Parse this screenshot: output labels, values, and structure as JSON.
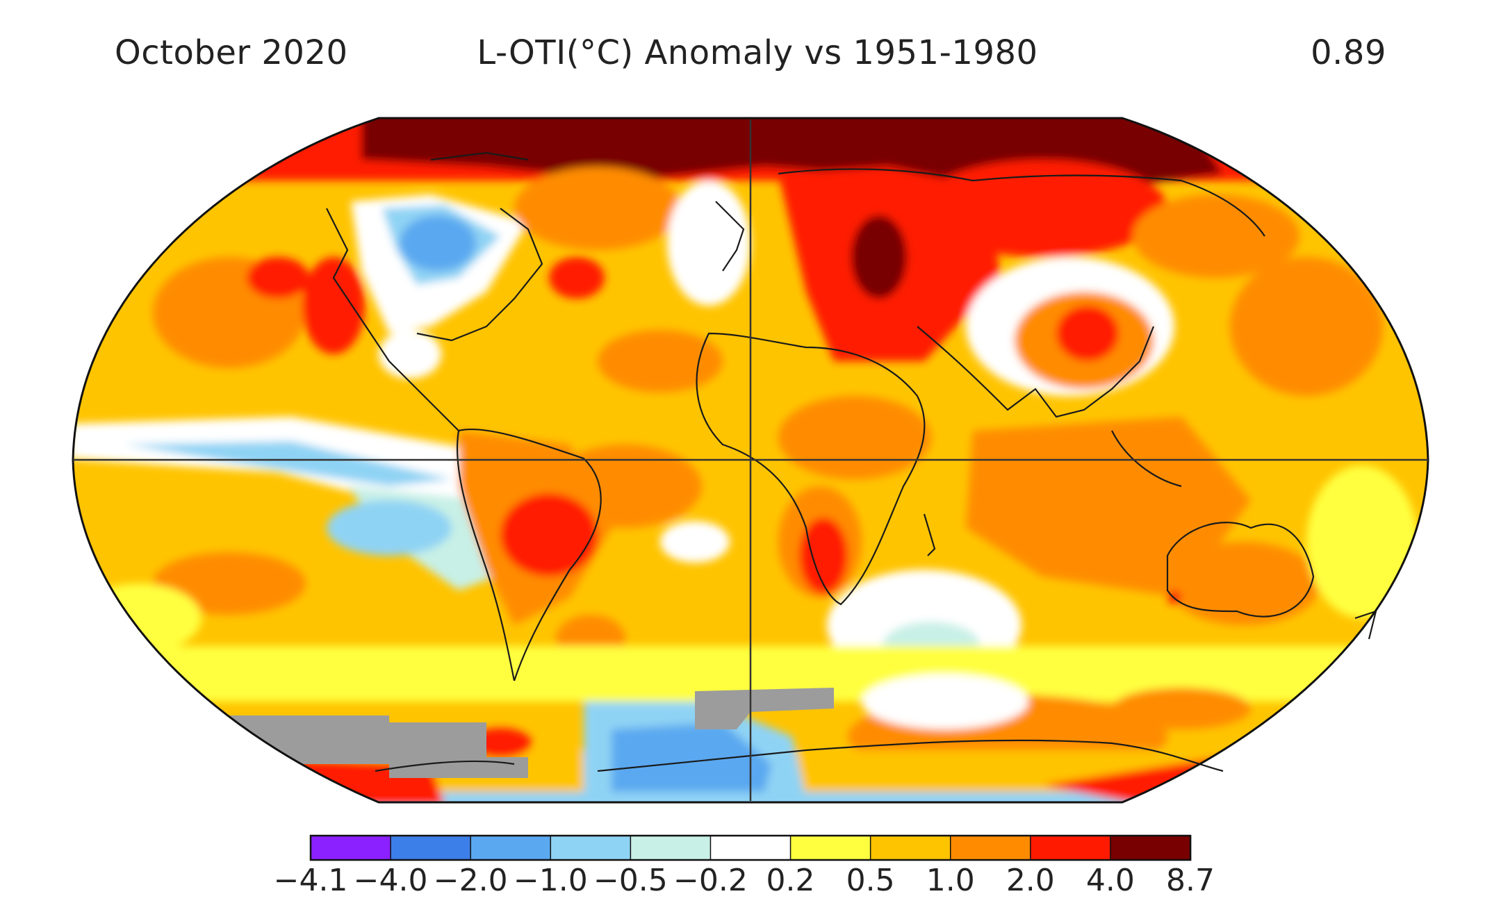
{
  "header": {
    "date": "October 2020",
    "title": "L-OTI(°C) Anomaly vs 1951-1980",
    "global_mean": "0.89"
  },
  "colors": {
    "purple": "#8b21ff",
    "blue_dark": "#3d7fe8",
    "blue": "#5aa8f0",
    "blue_light": "#8fd3f4",
    "cyan_pale": "#c8f0e6",
    "white": "#ffffff",
    "yellow": "#ffff40",
    "gold": "#ffc400",
    "orange": "#ff8c00",
    "red": "#ff1a00",
    "dark_red": "#780000",
    "no_data": "#9c9c9c",
    "coast": "#1a1a1a"
  },
  "colorbar": {
    "ticks": [
      "−4.1",
      "−4.0",
      "−2.0",
      "−1.0",
      "−0.5",
      "−0.2",
      "0.2",
      "0.5",
      "1.0",
      "2.0",
      "4.0",
      "8.7"
    ],
    "bins": [
      "purple",
      "blue_dark",
      "blue",
      "blue_light",
      "cyan_pale",
      "white",
      "yellow",
      "gold",
      "orange",
      "red",
      "dark_red"
    ]
  }
}
